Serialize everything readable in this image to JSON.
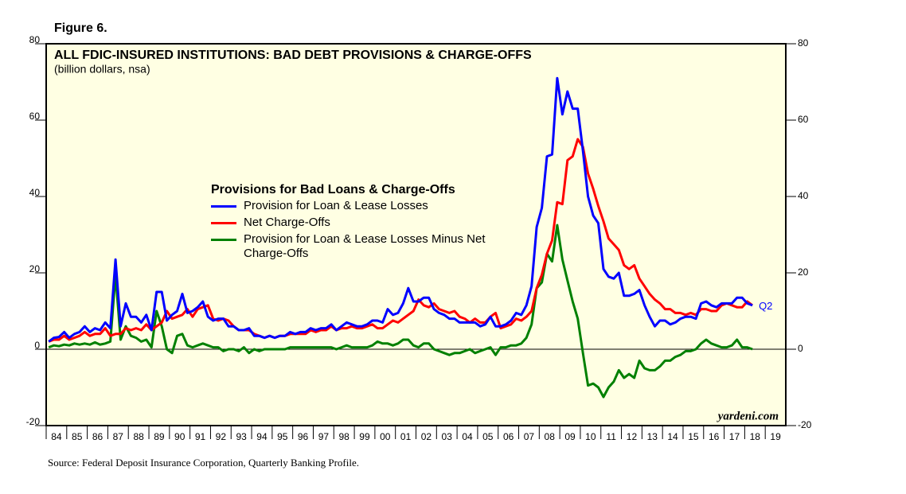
{
  "figure_label": "Figure 6.",
  "source": "Source: Federal Deposit Insurance Corporation, Quarterly Banking Profile.",
  "chart_data": {
    "type": "line",
    "title": "ALL FDIC-INSURED INSTITUTIONS: BAD DEBT PROVISIONS & CHARGE-OFFS",
    "subtitle": "(billion dollars, nsa)",
    "legend_title": "Provisions for Bad Loans & Charge-Offs",
    "annotations": [
      "Q2",
      "yardeni.com"
    ],
    "xlim": [
      1984,
      2020
    ],
    "ylim": [
      -20,
      80
    ],
    "yticks": [
      -20,
      0,
      20,
      40,
      60,
      80
    ],
    "xticks": [
      {
        "value": 1984,
        "label": "84"
      },
      {
        "value": 1985,
        "label": "85"
      },
      {
        "value": 1986,
        "label": "86"
      },
      {
        "value": 1987,
        "label": "87"
      },
      {
        "value": 1988,
        "label": "88"
      },
      {
        "value": 1989,
        "label": "89"
      },
      {
        "value": 1990,
        "label": "90"
      },
      {
        "value": 1991,
        "label": "91"
      },
      {
        "value": 1992,
        "label": "92"
      },
      {
        "value": 1993,
        "label": "93"
      },
      {
        "value": 1994,
        "label": "94"
      },
      {
        "value": 1995,
        "label": "95"
      },
      {
        "value": 1996,
        "label": "96"
      },
      {
        "value": 1997,
        "label": "97"
      },
      {
        "value": 1998,
        "label": "98"
      },
      {
        "value": 1999,
        "label": "99"
      },
      {
        "value": 2000,
        "label": "00"
      },
      {
        "value": 2001,
        "label": "01"
      },
      {
        "value": 2002,
        "label": "02"
      },
      {
        "value": 2003,
        "label": "03"
      },
      {
        "value": 2004,
        "label": "04"
      },
      {
        "value": 2005,
        "label": "05"
      },
      {
        "value": 2006,
        "label": "06"
      },
      {
        "value": 2007,
        "label": "07"
      },
      {
        "value": 2008,
        "label": "08"
      },
      {
        "value": 2009,
        "label": "09"
      },
      {
        "value": 2010,
        "label": "10"
      },
      {
        "value": 2011,
        "label": "11"
      },
      {
        "value": 2012,
        "label": "12"
      },
      {
        "value": 2013,
        "label": "13"
      },
      {
        "value": 2014,
        "label": "14"
      },
      {
        "value": 2015,
        "label": "15"
      },
      {
        "value": 2016,
        "label": "16"
      },
      {
        "value": 2017,
        "label": "17"
      },
      {
        "value": 2018,
        "label": "18"
      },
      {
        "value": 2019,
        "label": "19"
      }
    ],
    "x": [
      1984.125,
      1984.375,
      1984.625,
      1984.875,
      1985.125,
      1985.375,
      1985.625,
      1985.875,
      1986.125,
      1986.375,
      1986.625,
      1986.875,
      1987.125,
      1987.375,
      1987.625,
      1987.875,
      1988.125,
      1988.375,
      1988.625,
      1988.875,
      1989.125,
      1989.375,
      1989.625,
      1989.875,
      1990.125,
      1990.375,
      1990.625,
      1990.875,
      1991.125,
      1991.375,
      1991.625,
      1991.875,
      1992.125,
      1992.375,
      1992.625,
      1992.875,
      1993.125,
      1993.375,
      1993.625,
      1993.875,
      1994.125,
      1994.375,
      1994.625,
      1994.875,
      1995.125,
      1995.375,
      1995.625,
      1995.875,
      1996.125,
      1996.375,
      1996.625,
      1996.875,
      1997.125,
      1997.375,
      1997.625,
      1997.875,
      1998.125,
      1998.375,
      1998.625,
      1998.875,
      1999.125,
      1999.375,
      1999.625,
      1999.875,
      2000.125,
      2000.375,
      2000.625,
      2000.875,
      2001.125,
      2001.375,
      2001.625,
      2001.875,
      2002.125,
      2002.375,
      2002.625,
      2002.875,
      2003.125,
      2003.375,
      2003.625,
      2003.875,
      2004.125,
      2004.375,
      2004.625,
      2004.875,
      2005.125,
      2005.375,
      2005.625,
      2005.875,
      2006.125,
      2006.375,
      2006.625,
      2006.875,
      2007.125,
      2007.375,
      2007.625,
      2007.875,
      2008.125,
      2008.375,
      2008.625,
      2008.875,
      2009.125,
      2009.375,
      2009.625,
      2009.875,
      2010.125,
      2010.375,
      2010.625,
      2010.875,
      2011.125,
      2011.375,
      2011.625,
      2011.875,
      2012.125,
      2012.375,
      2012.625,
      2012.875,
      2013.125,
      2013.375,
      2013.625,
      2013.875,
      2014.125,
      2014.375,
      2014.625,
      2014.875,
      2015.125,
      2015.375,
      2015.625,
      2015.875,
      2016.125,
      2016.375,
      2016.625,
      2016.875,
      2017.125,
      2017.375,
      2017.625,
      2017.875,
      2018.125,
      2018.375
    ],
    "series": [
      {
        "name": "Provision for Loan & Lease Losses",
        "color": "#0000ff",
        "values": [
          2.0,
          3.0,
          3.2,
          4.5,
          3.0,
          4.0,
          4.5,
          6.0,
          4.5,
          5.5,
          5.0,
          7.0,
          5.5,
          23.5,
          6.0,
          12.0,
          8.5,
          8.5,
          7.0,
          9.0,
          5.0,
          15.0,
          15.0,
          7.5,
          9.0,
          10.0,
          14.5,
          9.5,
          10.0,
          11.0,
          12.5,
          8.5,
          7.5,
          8.0,
          8.0,
          6.0,
          6.0,
          5.0,
          5.0,
          5.5,
          3.5,
          3.5,
          3.0,
          3.5,
          3.0,
          3.5,
          3.5,
          4.5,
          4.0,
          4.5,
          4.5,
          5.5,
          5.0,
          5.5,
          5.5,
          6.5,
          5.0,
          6.0,
          7.0,
          6.5,
          6.0,
          6.0,
          6.5,
          7.5,
          7.5,
          7.0,
          10.5,
          9.0,
          9.5,
          12.0,
          16.0,
          12.5,
          12.5,
          13.5,
          13.5,
          10.5,
          9.5,
          9.0,
          8.0,
          8.0,
          7.0,
          7.0,
          7.0,
          7.0,
          6.0,
          6.5,
          8.5,
          6.0,
          6.0,
          6.5,
          7.5,
          9.5,
          9.0,
          11.5,
          16.5,
          32.0,
          37.0,
          50.5,
          51.0,
          71.0,
          61.5,
          67.5,
          63.0,
          63.0,
          52.0,
          40.0,
          35.0,
          33.0,
          21.0,
          19.0,
          18.5,
          20.0,
          14.0,
          14.0,
          14.5,
          15.5,
          11.5,
          8.5,
          6.0,
          7.5,
          7.5,
          6.5,
          7.0,
          8.0,
          8.5,
          8.5,
          8.0,
          12.0,
          12.5,
          11.5,
          11.0,
          12.0,
          12.0,
          12.0,
          13.5,
          13.5,
          12.0,
          11.5
        ]
      },
      {
        "name": "Net Charge-Offs",
        "color": "#ff0000",
        "values": [
          2.0,
          2.5,
          2.5,
          3.5,
          2.5,
          3.0,
          3.5,
          4.5,
          3.5,
          4.0,
          4.0,
          5.5,
          3.5,
          4.0,
          4.0,
          5.5,
          5.0,
          5.5,
          5.0,
          6.5,
          5.0,
          6.0,
          7.0,
          10.0,
          8.0,
          8.5,
          9.0,
          10.5,
          8.5,
          10.5,
          11.0,
          11.5,
          8.0,
          7.5,
          8.0,
          7.5,
          6.0,
          5.0,
          5.0,
          5.0,
          4.0,
          3.5,
          3.0,
          3.5,
          3.0,
          3.5,
          3.5,
          4.0,
          4.0,
          4.0,
          4.0,
          5.0,
          4.5,
          5.0,
          5.0,
          6.0,
          5.0,
          5.5,
          5.5,
          6.0,
          5.5,
          5.5,
          6.0,
          6.5,
          5.5,
          5.5,
          6.5,
          7.5,
          7.0,
          8.0,
          9.0,
          10.0,
          13.0,
          11.5,
          11.0,
          12.0,
          10.5,
          10.0,
          9.5,
          10.0,
          8.5,
          8.0,
          7.0,
          8.0,
          7.0,
          7.0,
          8.5,
          9.5,
          5.5,
          6.0,
          6.5,
          8.0,
          7.5,
          8.5,
          10.0,
          16.0,
          19.5,
          25.0,
          28.5,
          38.5,
          38.0,
          49.5,
          50.5,
          55.0,
          53.0,
          46.0,
          42.0,
          37.5,
          33.5,
          29.0,
          27.5,
          26.0,
          22.0,
          21.0,
          22.0,
          18.5,
          16.5,
          14.5,
          13.0,
          12.0,
          10.5,
          10.5,
          9.5,
          9.5,
          9.0,
          9.5,
          9.0,
          10.5,
          10.5,
          10.0,
          10.0,
          11.5,
          12.0,
          11.5,
          11.0,
          11.0,
          12.5,
          11.5
        ]
      },
      {
        "name": "Provision for Loan & Lease Losses Minus Net Charge-Offs",
        "color": "#008000",
        "values": [
          0.5,
          1.0,
          0.8,
          1.2,
          1.0,
          1.5,
          1.2,
          1.5,
          1.2,
          1.8,
          1.2,
          1.5,
          2.0,
          19.5,
          2.5,
          6.0,
          3.5,
          3.0,
          2.0,
          2.5,
          0.5,
          10.0,
          6.0,
          0.0,
          -1.0,
          3.5,
          4.0,
          1.0,
          0.5,
          1.0,
          1.5,
          1.0,
          0.5,
          0.5,
          -0.5,
          0.0,
          0.0,
          -0.5,
          0.5,
          -1.0,
          0.0,
          -0.5,
          0.0,
          0.0,
          0.0,
          0.0,
          0.0,
          0.5,
          0.5,
          0.5,
          0.5,
          0.5,
          0.5,
          0.5,
          0.5,
          0.5,
          0.0,
          0.5,
          1.0,
          0.5,
          0.5,
          0.5,
          0.5,
          1.0,
          2.0,
          1.5,
          1.5,
          1.0,
          1.5,
          2.5,
          2.5,
          1.0,
          0.5,
          1.5,
          1.5,
          0.0,
          -0.5,
          -1.0,
          -1.5,
          -1.0,
          -1.0,
          -0.5,
          0.0,
          -1.0,
          -0.5,
          0.0,
          0.5,
          -1.5,
          0.5,
          0.5,
          1.0,
          1.0,
          1.5,
          3.0,
          6.5,
          16.0,
          17.5,
          25.0,
          23.0,
          32.5,
          23.5,
          18.0,
          12.5,
          8.0,
          -1.0,
          -9.5,
          -9.0,
          -10.0,
          -12.5,
          -10.0,
          -8.5,
          -5.5,
          -7.5,
          -6.5,
          -7.5,
          -3.0,
          -5.0,
          -5.5,
          -5.5,
          -4.5,
          -3.0,
          -3.0,
          -2.0,
          -1.5,
          -0.5,
          -0.5,
          0.0,
          1.5,
          2.5,
          1.5,
          1.0,
          0.5,
          0.5,
          1.0,
          2.5,
          0.5,
          0.5,
          0.0
        ]
      }
    ]
  }
}
